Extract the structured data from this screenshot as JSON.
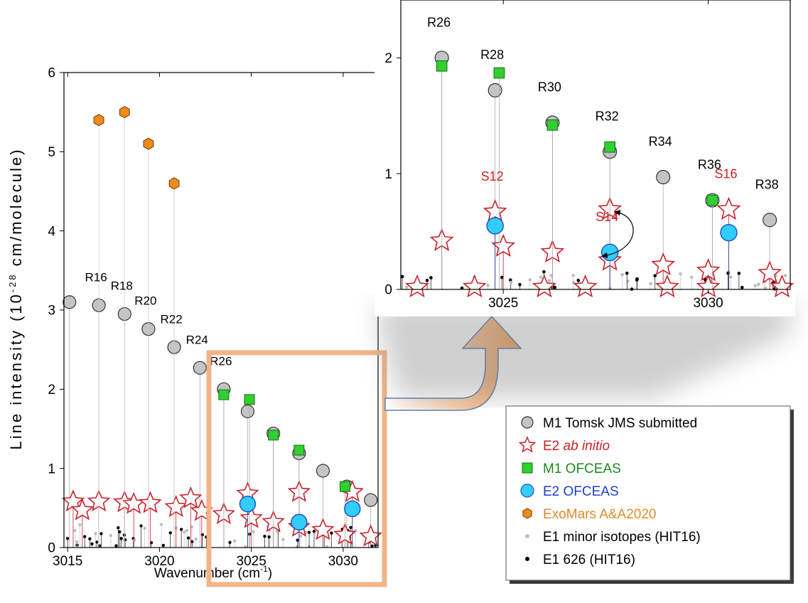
{
  "chart_data": [
    {
      "type": "scatter",
      "panel": "main",
      "xlabel": "Wavenumber (cm",
      "xlabel_sup": "-1",
      "xlabel_end": ")",
      "ylabel": "Line intensity",
      "ylabel_unit_pre": "(10",
      "ylabel_unit_sup": "-28",
      "ylabel_unit_post": " cm/molecule)",
      "xlim": [
        3014.8,
        3031.9
      ],
      "ylim": [
        0,
        6
      ],
      "x_ticks": [
        "3015",
        "3020",
        "3025",
        "3030"
      ],
      "y_ticks": [
        "0",
        "1",
        "2",
        "3",
        "4",
        "5",
        "6"
      ],
      "series": [
        {
          "name": "M1 Tomsk JMS submitted",
          "color": "#c0c0c0",
          "points": [
            [
              3015.1,
              3.1
            ],
            [
              3016.7,
              3.06
            ],
            [
              3018.1,
              2.95
            ],
            [
              3019.4,
              2.76
            ],
            [
              3020.8,
              2.53
            ],
            [
              3022.2,
              2.27
            ],
            [
              3023.5,
              2.0
            ],
            [
              3024.8,
              1.72
            ],
            [
              3026.2,
              1.44
            ],
            [
              3027.6,
              1.19
            ],
            [
              3028.9,
              0.97
            ],
            [
              3030.2,
              0.77
            ],
            [
              3031.5,
              0.6
            ]
          ]
        },
        {
          "name": "E2 ab initio",
          "color": "#cc2222",
          "points": [
            [
              3015.3,
              0.58
            ],
            [
              3015.8,
              0.47
            ],
            [
              3016.7,
              0.58
            ],
            [
              3018.1,
              0.57
            ],
            [
              3018.6,
              0.55
            ],
            [
              3019.5,
              0.56
            ],
            [
              3020.9,
              0.51
            ],
            [
              3021.7,
              0.62
            ],
            [
              3022.3,
              0.46
            ],
            [
              3023.5,
              0.42
            ],
            [
              3024.8,
              0.68
            ],
            [
              3025.0,
              0.37
            ],
            [
              3026.2,
              0.32
            ],
            [
              3027.6,
              0.7
            ],
            [
              3027.6,
              0.26
            ],
            [
              3028.9,
              0.22
            ],
            [
              3030.1,
              0.16
            ],
            [
              3030.5,
              0.7
            ],
            [
              3031.5,
              0.14
            ]
          ]
        },
        {
          "name": "M1 OFCEAS",
          "color": "#33cc33",
          "points": [
            [
              3023.5,
              1.93
            ],
            [
              3024.9,
              1.87
            ],
            [
              3026.2,
              1.42
            ],
            [
              3027.6,
              1.23
            ],
            [
              3030.1,
              0.77
            ]
          ]
        },
        {
          "name": "E2 OFCEAS",
          "color": "#33ccff",
          "points": [
            [
              3024.8,
              0.55
            ],
            [
              3027.6,
              0.32
            ],
            [
              3030.5,
              0.49
            ]
          ]
        },
        {
          "name": "ExoMars A&A2020",
          "color": "#ee8a22",
          "points": [
            [
              3016.7,
              5.4
            ],
            [
              3018.1,
              5.5
            ],
            [
              3019.4,
              5.1
            ],
            [
              3020.8,
              4.6
            ]
          ]
        }
      ],
      "annotations": [
        {
          "text": "R16",
          "x": 3016.7,
          "y": 3.06
        },
        {
          "text": "R18",
          "x": 3018.1,
          "y": 2.95
        },
        {
          "text": "R20",
          "x": 3019.4,
          "y": 2.76
        },
        {
          "text": "R22",
          "x": 3020.8,
          "y": 2.53
        },
        {
          "text": "R24",
          "x": 3022.2,
          "y": 2.27
        },
        {
          "text": "R26",
          "x": 3023.5,
          "y": 2.0
        }
      ]
    },
    {
      "type": "scatter",
      "panel": "zoom",
      "xlim": [
        3022.5,
        3032.0
      ],
      "ylim": [
        0,
        2.5
      ],
      "x_ticks": [
        "3025",
        "3030"
      ],
      "y_ticks": [
        "0",
        "1",
        "2"
      ],
      "series": [
        {
          "name": "M1 Tomsk JMS submitted",
          "color": "#c0c0c0",
          "points": [
            [
              3023.5,
              2.0
            ],
            [
              3024.8,
              1.72
            ],
            [
              3026.2,
              1.44
            ],
            [
              3027.6,
              1.19
            ],
            [
              3028.9,
              0.97
            ],
            [
              3030.1,
              0.77
            ],
            [
              3031.5,
              0.6
            ]
          ]
        },
        {
          "name": "E2 ab initio",
          "color": "#cc2222",
          "points": [
            [
              3023.5,
              0.42
            ],
            [
              3024.8,
              0.67
            ],
            [
              3025.0,
              0.37
            ],
            [
              3026.2,
              0.32
            ],
            [
              3027.6,
              0.69
            ],
            [
              3027.6,
              0.25
            ],
            [
              3028.9,
              0.21
            ],
            [
              3030.0,
              0.16
            ],
            [
              3030.5,
              0.69
            ],
            [
              3031.5,
              0.14
            ],
            [
              3022.9,
              0.02
            ],
            [
              3024.3,
              0.02
            ],
            [
              3026.0,
              0.02
            ],
            [
              3027.0,
              0.02
            ],
            [
              3029.0,
              0.02
            ],
            [
              3030.0,
              0.02
            ],
            [
              3031.8,
              0.02
            ]
          ]
        },
        {
          "name": "M1 OFCEAS",
          "color": "#33cc33",
          "points": [
            [
              3023.5,
              1.93
            ],
            [
              3024.9,
              1.87
            ],
            [
              3026.2,
              1.42
            ],
            [
              3027.6,
              1.23
            ],
            [
              3030.1,
              0.77
            ]
          ]
        },
        {
          "name": "E2 OFCEAS",
          "color": "#33ccff",
          "points": [
            [
              3024.8,
              0.55
            ],
            [
              3027.6,
              0.32
            ],
            [
              3030.5,
              0.49
            ]
          ]
        }
      ],
      "annotations": [
        {
          "text": "R26",
          "x": 3023.5,
          "y": 2.0,
          "color": "#000000"
        },
        {
          "text": "R28",
          "x": 3024.8,
          "y": 1.72,
          "color": "#000000"
        },
        {
          "text": "R30",
          "x": 3026.2,
          "y": 1.44,
          "color": "#000000"
        },
        {
          "text": "R32",
          "x": 3027.6,
          "y": 1.19,
          "color": "#000000"
        },
        {
          "text": "R34",
          "x": 3028.9,
          "y": 0.97,
          "color": "#000000"
        },
        {
          "text": "R36",
          "x": 3030.1,
          "y": 0.77,
          "color": "#000000"
        },
        {
          "text": "R38",
          "x": 3031.5,
          "y": 0.6,
          "color": "#000000"
        },
        {
          "text": "S12",
          "x": 3024.8,
          "y": 0.67,
          "color": "#cc2222"
        },
        {
          "text": "S14",
          "x": 3027.6,
          "y": 0.32,
          "color": "#cc2222"
        },
        {
          "text": "S16",
          "x": 3030.5,
          "y": 0.69,
          "color": "#cc2222"
        }
      ]
    }
  ],
  "legend": {
    "items": [
      {
        "marker": "circle-gray",
        "label": "M1 Tomsk JMS submitted",
        "color": "#000000"
      },
      {
        "marker": "star-red",
        "label": "E2 ",
        "label_italic": "ab initio",
        "color": "#cc2222"
      },
      {
        "marker": "square-green",
        "label": "M1 OFCEAS",
        "color": "#1a8a1a"
      },
      {
        "marker": "circle-cyan",
        "label": "E2 OFCEAS",
        "color": "#1f3fc9"
      },
      {
        "marker": "hexagon-orange",
        "label": "ExoMars A&A2020",
        "color": "#e08a2a"
      },
      {
        "marker": "dot-gray",
        "label": "E1 minor isotopes (HIT16)",
        "color": "#000000"
      },
      {
        "marker": "dot-black",
        "label": "E1 626 (HIT16)",
        "color": "#000000"
      }
    ]
  }
}
